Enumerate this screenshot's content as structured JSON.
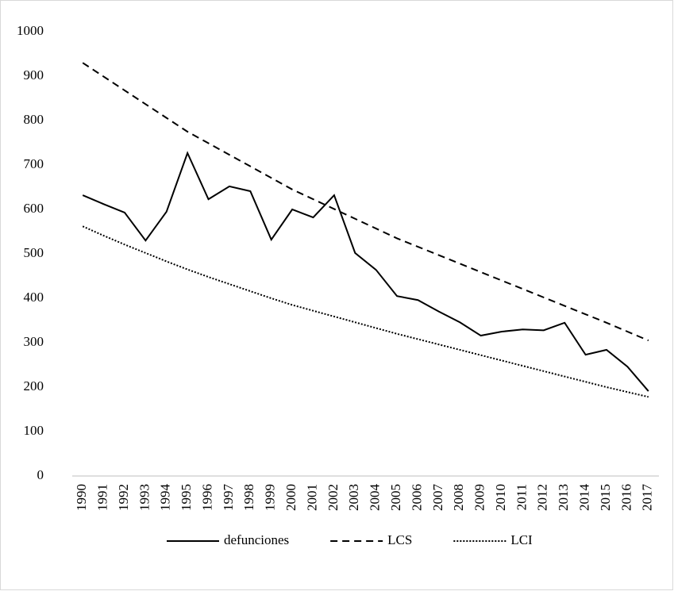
{
  "chart_data": {
    "type": "line",
    "categories": [
      "1990",
      "1991",
      "1992",
      "1993",
      "1994",
      "1995",
      "1996",
      "1997",
      "1998",
      "1999",
      "2000",
      "2001",
      "2002",
      "2003",
      "2004",
      "2005",
      "2006",
      "2007",
      "2008",
      "2009",
      "2010",
      "2011",
      "2012",
      "2013",
      "2014",
      "2015",
      "2016",
      "2017"
    ],
    "series": [
      {
        "name": "defunciones",
        "color": "#000000",
        "dash": "solid",
        "values": [
          632,
          612,
          593,
          530,
          595,
          727,
          623,
          652,
          641,
          532,
          600,
          582,
          632,
          502,
          464,
          405,
          396,
          370,
          346,
          316,
          325,
          330,
          328,
          345,
          273,
          284,
          246,
          191
        ]
      },
      {
        "name": "LCS",
        "color": "#000000",
        "dash": "dashed",
        "values": [
          930,
          899,
          868,
          837,
          806,
          775,
          749,
          723,
          697,
          671,
          645,
          623,
          601,
          579,
          557,
          535,
          516,
          497,
          478,
          459,
          440,
          421,
          402,
          383,
          364,
          345,
          325,
          305
        ]
      },
      {
        "name": "LCI",
        "color": "#000000",
        "dash": "dotted",
        "values": [
          562,
          541,
          521,
          502,
          483,
          465,
          448,
          432,
          416,
          400,
          385,
          372,
          359,
          346,
          333,
          320,
          308,
          296,
          284,
          272,
          260,
          248,
          236,
          224,
          212,
          200,
          189,
          178
        ]
      }
    ],
    "ylim": [
      0,
      1000
    ],
    "yticks": [
      0,
      100,
      200,
      300,
      400,
      500,
      600,
      700,
      800,
      900,
      1000
    ],
    "grid": false,
    "legend": "bottom"
  }
}
